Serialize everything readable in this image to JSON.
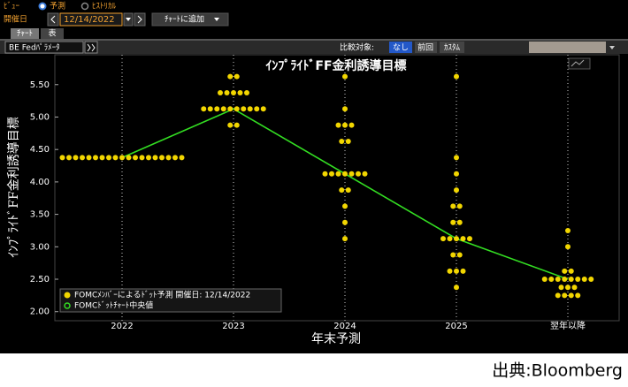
{
  "ui": {
    "view": "ﾋﾞｭｰ",
    "option_forecast": "予測",
    "option_historical": "ﾋｽﾄﾘｶﾙ",
    "date_label": "開催日",
    "date": "12/14/2022",
    "add_to_chart": "ﾁｬｰﾄに追加",
    "tab_chart": "ﾁｬｰﾄ",
    "tab_table": "表",
    "params": "BE Fedﾊﾟﾗﾒｰﾀ",
    "compare_label": "比較対象:",
    "compare_none": "なし",
    "compare_previous": "前回",
    "compare_custom": "ｶｽﾀﾑ",
    "source": "出典:Bloomberg"
  },
  "chart_data": {
    "type": "dot",
    "title": "ｲﾝﾌﾟﾗｲﾄﾞFF金利誘導目標",
    "y_label": "ｲﾝﾌﾟﾗｲﾄﾞFF金利誘導目標",
    "x_label": "年末予測",
    "categories": [
      "2022",
      "2023",
      "2024",
      "2025",
      "翌年以降"
    ],
    "dots_name": "FOMCﾒﾝﾊﾞｰによるﾄﾞｯﾄ予測 開催日: 12/14/2022",
    "dots_color": "#f2d600",
    "dots": [
      [
        4.375,
        4.375,
        4.375,
        4.375,
        4.375,
        4.375,
        4.375,
        4.375,
        4.375,
        4.375,
        4.375,
        4.375,
        4.375,
        4.375,
        4.375,
        4.375,
        4.375,
        4.375,
        4.375
      ],
      [
        5.625,
        5.625,
        5.375,
        5.375,
        5.375,
        5.375,
        5.375,
        5.125,
        5.125,
        5.125,
        5.125,
        5.125,
        5.125,
        5.125,
        5.125,
        5.125,
        5.125,
        4.875,
        4.875
      ],
      [
        5.625,
        5.125,
        4.875,
        4.875,
        4.875,
        4.625,
        4.625,
        4.125,
        4.125,
        4.125,
        4.125,
        4.125,
        4.125,
        4.125,
        3.875,
        3.875,
        3.625,
        3.375,
        3.125
      ],
      [
        5.625,
        4.375,
        4.125,
        3.875,
        3.625,
        3.625,
        3.375,
        3.375,
        3.125,
        3.125,
        3.125,
        3.125,
        3.125,
        2.875,
        2.875,
        2.625,
        2.625,
        2.625,
        2.375
      ],
      [
        3.25,
        3.0,
        2.625,
        2.625,
        2.5,
        2.5,
        2.5,
        2.5,
        2.5,
        2.5,
        2.5,
        2.5,
        2.375,
        2.375,
        2.375,
        2.25,
        2.25,
        2.25,
        2.25
      ]
    ],
    "series": [
      {
        "name": "FOMCﾄﾞｯﾄﾁｬｰﾄ中央値",
        "color": "#33dd22",
        "values": [
          4.375,
          5.125,
          4.125,
          3.125,
          2.5
        ]
      }
    ],
    "ylim": [
      1.86,
      5.96
    ],
    "yticks": [
      {
        "value": 2,
        "label": "2.00"
      },
      {
        "value": 2.5,
        "label": "2.50"
      },
      {
        "value": 3,
        "label": "3.00"
      },
      {
        "value": 3.5,
        "label": "3.50"
      },
      {
        "value": 4,
        "label": "4.00"
      },
      {
        "value": 4.5,
        "label": "4.50"
      },
      {
        "value": 5,
        "label": "5.00"
      },
      {
        "value": 5.5,
        "label": "5.50"
      }
    ],
    "grid": true
  }
}
